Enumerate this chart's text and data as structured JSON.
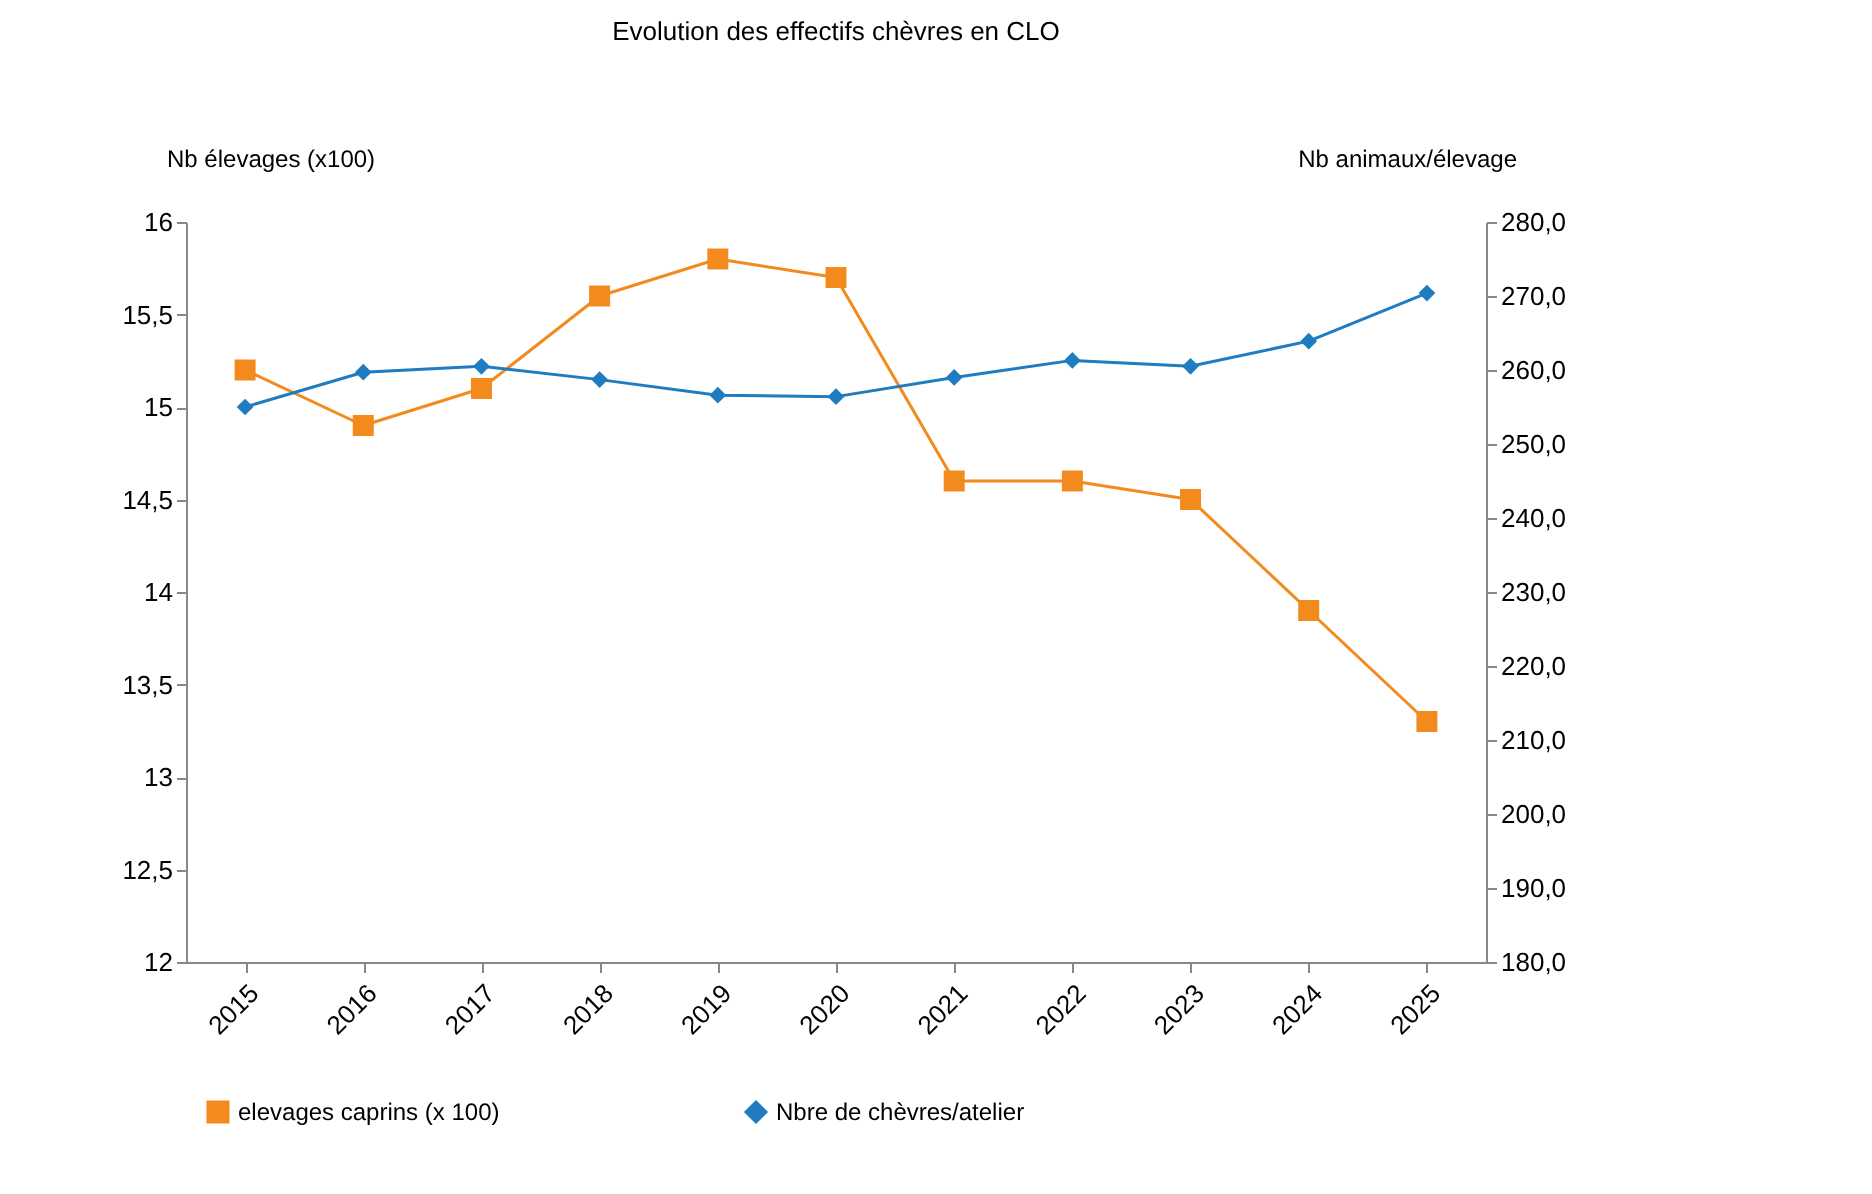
{
  "chart_data": {
    "type": "line",
    "title": "Evolution des effectifs chèvres en CLO",
    "ylabel": "Nb élevages  (x100)",
    "y2label": "Nb animaux/élevage",
    "categories": [
      "2015",
      "2016",
      "2017",
      "2018",
      "2019",
      "2020",
      "2021",
      "2022",
      "2023",
      "2024",
      "2025"
    ],
    "series": [
      {
        "name": "elevages caprins (x 100)",
        "color": "#f28a1e",
        "marker": "square",
        "values": [
          15.2,
          14.9,
          15.1,
          15.6,
          15.8,
          15.7,
          14.6,
          14.6,
          14.5,
          13.9,
          13.3
        ]
      },
      {
        "name": "Nbre de chèvres/atelier",
        "color": "#1f7cc1",
        "marker": "diamond",
        "axis": "y2",
        "values": [
          255,
          259.7,
          260.5,
          258.7,
          256.6,
          256.4,
          259,
          261.3,
          260.5,
          263.9,
          270.4
        ]
      }
    ],
    "ylim": [
      12,
      16
    ],
    "yticks": [
      12,
      {
        "value": 12.5,
        "label": "12,5"
      },
      13,
      {
        "value": 13.5,
        "label": "13,5"
      },
      14,
      {
        "value": 14.5,
        "label": "14,5"
      },
      15,
      {
        "value": 15.5,
        "label": "15,5"
      },
      16
    ],
    "y2lim": [
      180,
      280
    ],
    "y2ticks": [
      {
        "value": 180,
        "label": "180,0"
      },
      {
        "value": 190,
        "label": "190,0"
      },
      {
        "value": 200,
        "label": "200,0"
      },
      {
        "value": 210,
        "label": "210,0"
      },
      {
        "value": 220,
        "label": "220,0"
      },
      {
        "value": 230,
        "label": "230,0"
      },
      {
        "value": 240,
        "label": "240,0"
      },
      {
        "value": 250,
        "label": "250,0"
      },
      {
        "value": 260,
        "label": "260,0"
      },
      {
        "value": 270,
        "label": "270,0"
      },
      {
        "value": 280,
        "label": "280,0"
      }
    ],
    "grid": false,
    "legend": "bottom"
  }
}
